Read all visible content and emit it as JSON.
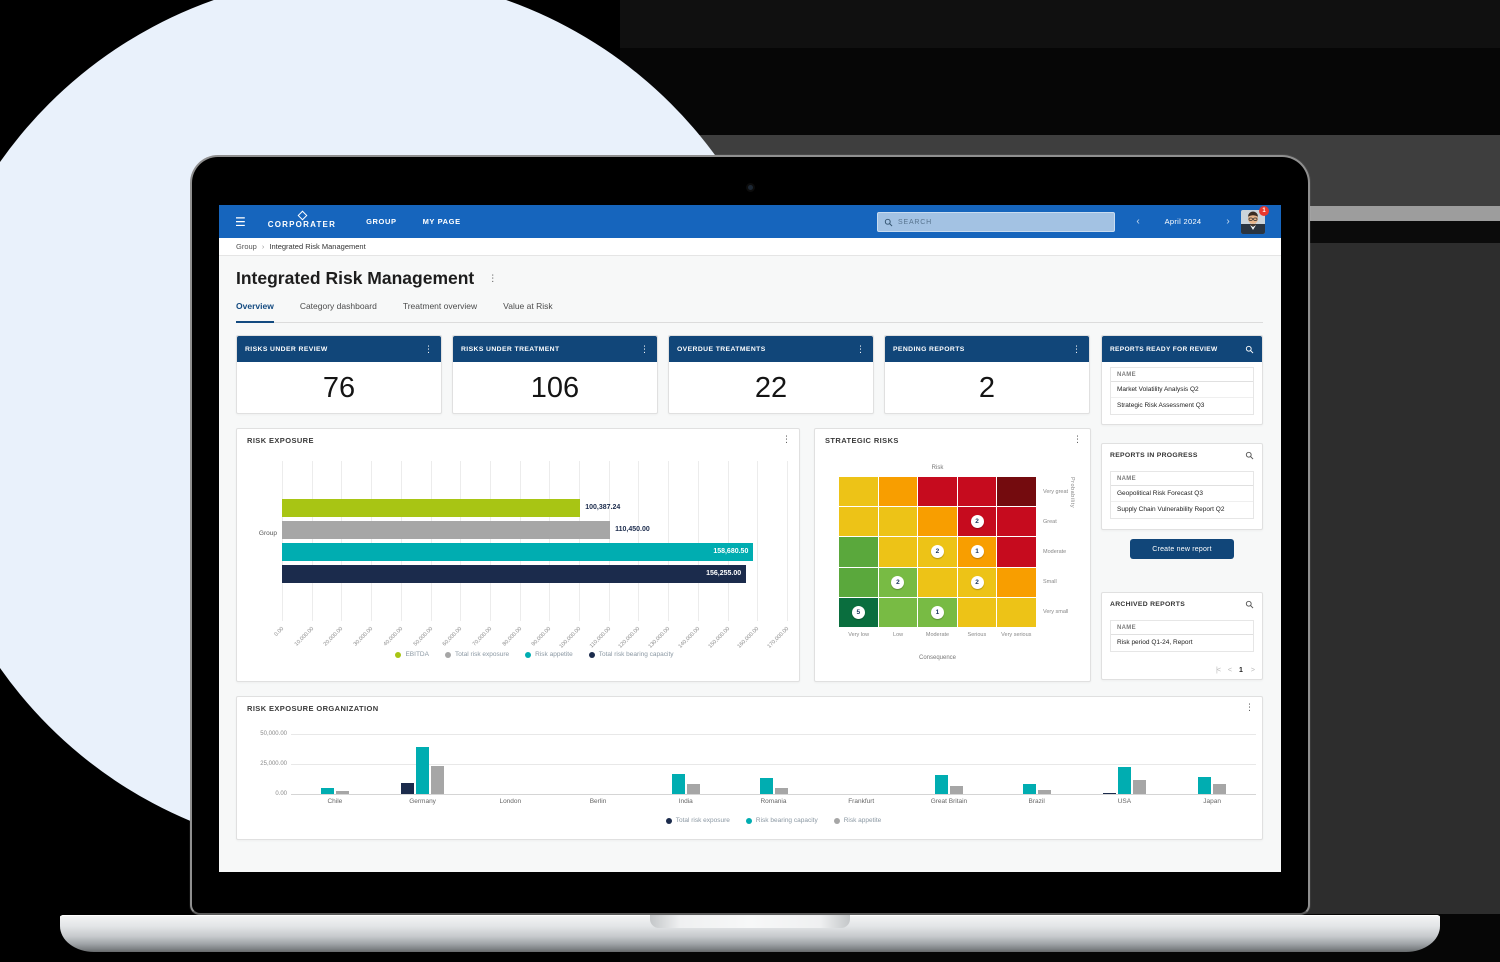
{
  "colors": {
    "appbar_blue": "#1665bd",
    "navy": "#114679",
    "teal": "#00adb1",
    "green": "#a8c514",
    "gray": "#a6a6a6",
    "dark_navy_bar": "#1b2b4c",
    "circle_blue": "#e9f1fb",
    "badge_red": "#e8392e"
  },
  "icons": {
    "hamburger": "☰",
    "kebab": "⋮",
    "chevron_left": "‹",
    "chevron_right": "›",
    "breadcrumb_sep": "›"
  },
  "topbar": {
    "brand": "CORPORATER",
    "nav": [
      {
        "label": "GROUP"
      },
      {
        "label": "MY PAGE"
      }
    ],
    "search_placeholder": "SEARCH",
    "date_label": "April 2024",
    "notification_count": "1"
  },
  "breadcrumb": {
    "items": [
      "Group",
      "Integrated Risk Management"
    ]
  },
  "page": {
    "title": "Integrated Risk Management",
    "tabs": [
      {
        "label": "Overview",
        "active": true
      },
      {
        "label": "Category dashboard",
        "active": false
      },
      {
        "label": "Treatment overview",
        "active": false
      },
      {
        "label": "Value at Risk",
        "active": false
      }
    ]
  },
  "kpis": [
    {
      "title": "RISKS UNDER REVIEW",
      "value": "76"
    },
    {
      "title": "RISKS UNDER TREATMENT",
      "value": "106"
    },
    {
      "title": "OVERDUE TREATMENTS",
      "value": "22"
    },
    {
      "title": "PENDING REPORTS",
      "value": "2"
    }
  ],
  "panels": {
    "risk_exposure": {
      "title": "RISK EXPOSURE",
      "chart_data": {
        "type": "bar",
        "orientation": "horizontal",
        "category": "Group",
        "series": [
          {
            "name": "EBITDA",
            "value": 100387.24,
            "label": "100,387.24",
            "color": "#a8c514",
            "label_inside": false
          },
          {
            "name": "Total risk exposure",
            "value": 110450.0,
            "label": "110,450.00",
            "color": "#a6a6a6",
            "label_inside": false
          },
          {
            "name": "Risk appetite",
            "value": 158680.5,
            "label": "158,680.50",
            "color": "#00adb1",
            "label_inside": true
          },
          {
            "name": "Total risk bearing capacity",
            "value": 156255.0,
            "label": "156,255.00",
            "color": "#1b2b4c",
            "label_inside": true
          }
        ],
        "xlim": [
          0,
          170000
        ],
        "tick_step": 10000,
        "tick_labels": [
          "0.00",
          "10,000.00",
          "20,000.00",
          "30,000.00",
          "40,000.00",
          "50,000.00",
          "60,000.00",
          "70,000.00",
          "80,000.00",
          "90,000.00",
          "100,000.00",
          "110,000.00",
          "120,000.00",
          "130,000.00",
          "140,000.00",
          "150,000.00",
          "160,000.00",
          "170,000.00"
        ],
        "grid": true,
        "legend_position": "bottom"
      }
    },
    "strategic_risks": {
      "title": "STRATEGIC RISKS",
      "chart_data": {
        "type": "heatmap",
        "title_top": "Risk",
        "xlabel": "Consequence",
        "ylabel": "Probability",
        "x_categories": [
          "Very low",
          "Low",
          "Moderate",
          "Serious",
          "Very serious"
        ],
        "y_categories_top_to_bottom": [
          "Very great",
          "Great",
          "Moderate",
          "Small",
          "Very small"
        ],
        "palette": {
          "Y": "#edc317",
          "O": "#f89e00",
          "R": "#c60b1e",
          "DR": "#740b0e",
          "G": "#5aa83c",
          "LG": "#78bb44",
          "DG": "#0a6e3e"
        },
        "cells": [
          [
            "Y",
            "O",
            "R",
            "R",
            "DR"
          ],
          [
            "Y",
            "Y",
            "O",
            "R",
            "R"
          ],
          [
            "G",
            "Y",
            "Y",
            "O",
            "R"
          ],
          [
            "G",
            "LG",
            "Y",
            "Y",
            "O"
          ],
          [
            "DG",
            "LG",
            "LG",
            "Y",
            "Y"
          ]
        ],
        "badges": [
          {
            "row": 1,
            "col": 3,
            "value": "2"
          },
          {
            "row": 2,
            "col": 2,
            "value": "2"
          },
          {
            "row": 2,
            "col": 3,
            "value": "1"
          },
          {
            "row": 3,
            "col": 1,
            "value": "2"
          },
          {
            "row": 3,
            "col": 3,
            "value": "2"
          },
          {
            "row": 4,
            "col": 0,
            "value": "5"
          },
          {
            "row": 4,
            "col": 2,
            "value": "1"
          }
        ]
      }
    },
    "risk_exposure_org": {
      "title": "RISK EXPOSURE ORGANIZATION",
      "chart_data": {
        "type": "bar",
        "orientation": "vertical",
        "categories": [
          "Chile",
          "Germany",
          "London",
          "Berlin",
          "India",
          "Romania",
          "Frankfurt",
          "Great Britain",
          "Brazil",
          "USA",
          "Japan"
        ],
        "series": [
          {
            "name": "Total risk exposure",
            "color": "#1b2b4c",
            "values": [
              0,
              9500,
              0,
              0,
              0,
              0,
              0,
              0,
              0,
              1200,
              0
            ]
          },
          {
            "name": "Risk bearing capacity",
            "color": "#00adb1",
            "values": [
              5000,
              39000,
              0,
              0,
              16500,
              13500,
              0,
              16000,
              8500,
              22500,
              14500
            ]
          },
          {
            "name": "Risk appetite",
            "color": "#a6a6a6",
            "values": [
              2700,
              23500,
              0,
              0,
              8000,
              5000,
              0,
              6500,
              3500,
              11500,
              8000
            ]
          }
        ],
        "ylim": [
          0,
          50000
        ],
        "y_ticks": [
          "0.00",
          "25,000.00",
          "50,000.00"
        ],
        "grid": true,
        "legend_position": "bottom"
      }
    }
  },
  "sidebar": {
    "ready_for_review": {
      "title": "REPORTS READY FOR REVIEW",
      "column": "NAME",
      "rows": [
        "Market Volatility Analysis Q2",
        "Strategic Risk Assessment Q3"
      ]
    },
    "in_progress": {
      "title": "REPORTS IN PROGRESS",
      "column": "NAME",
      "rows": [
        "Geopolitical Risk Forecast Q3",
        "Supply Chain Vulnerability Report Q2"
      ]
    },
    "create_button": "Create new report",
    "archived": {
      "title": "ARCHIVED REPORTS",
      "column": "NAME",
      "rows": [
        "Risk period Q1-24, Report"
      ],
      "pagination": {
        "first": "|<",
        "prev": "<",
        "page": "1",
        "next": ">"
      }
    }
  }
}
